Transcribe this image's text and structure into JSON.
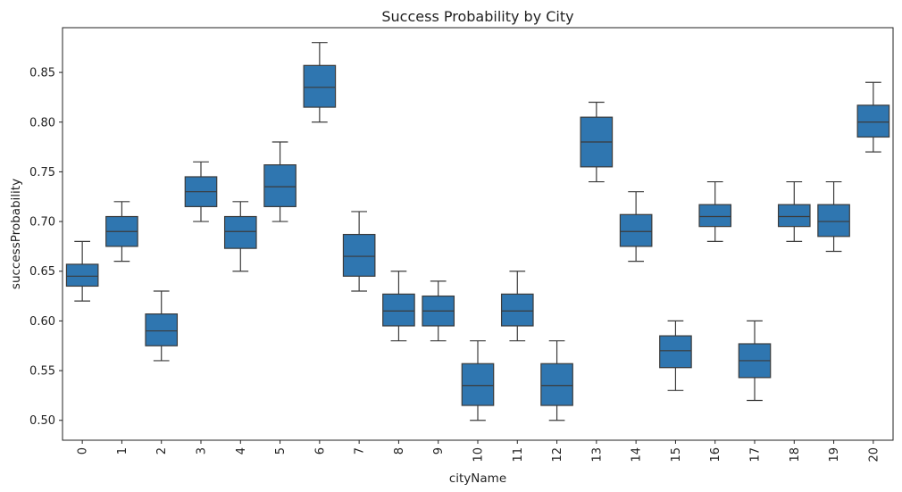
{
  "chart_data": {
    "type": "box",
    "title": "Success Probability by City",
    "xlabel": "cityName",
    "ylabel": "successProbability",
    "box_color": "#2f76b0",
    "line_color": "#3b3b3b",
    "ylim": [
      0.48,
      0.895
    ],
    "y_ticks": [
      0.5,
      0.55,
      0.6,
      0.65,
      0.7,
      0.75,
      0.8,
      0.85
    ],
    "y_tick_labels": [
      "0.50",
      "0.55",
      "0.60",
      "0.65",
      "0.70",
      "0.75",
      "0.80",
      "0.85"
    ],
    "categories": [
      "0",
      "1",
      "2",
      "3",
      "4",
      "5",
      "6",
      "7",
      "8",
      "9",
      "10",
      "11",
      "12",
      "13",
      "14",
      "15",
      "16",
      "17",
      "18",
      "19",
      "20"
    ],
    "boxes": [
      {
        "min": 0.62,
        "q1": 0.635,
        "median": 0.645,
        "q3": 0.657,
        "max": 0.68
      },
      {
        "min": 0.66,
        "q1": 0.675,
        "median": 0.69,
        "q3": 0.705,
        "max": 0.72
      },
      {
        "min": 0.56,
        "q1": 0.575,
        "median": 0.59,
        "q3": 0.607,
        "max": 0.63
      },
      {
        "min": 0.7,
        "q1": 0.715,
        "median": 0.73,
        "q3": 0.745,
        "max": 0.76
      },
      {
        "min": 0.65,
        "q1": 0.673,
        "median": 0.69,
        "q3": 0.705,
        "max": 0.72
      },
      {
        "min": 0.7,
        "q1": 0.715,
        "median": 0.735,
        "q3": 0.757,
        "max": 0.78
      },
      {
        "min": 0.8,
        "q1": 0.815,
        "median": 0.835,
        "q3": 0.857,
        "max": 0.88
      },
      {
        "min": 0.63,
        "q1": 0.645,
        "median": 0.665,
        "q3": 0.687,
        "max": 0.71
      },
      {
        "min": 0.58,
        "q1": 0.595,
        "median": 0.61,
        "q3": 0.627,
        "max": 0.65
      },
      {
        "min": 0.58,
        "q1": 0.595,
        "median": 0.61,
        "q3": 0.625,
        "max": 0.64
      },
      {
        "min": 0.5,
        "q1": 0.515,
        "median": 0.535,
        "q3": 0.557,
        "max": 0.58
      },
      {
        "min": 0.58,
        "q1": 0.595,
        "median": 0.61,
        "q3": 0.627,
        "max": 0.65
      },
      {
        "min": 0.5,
        "q1": 0.515,
        "median": 0.535,
        "q3": 0.557,
        "max": 0.58
      },
      {
        "min": 0.74,
        "q1": 0.755,
        "median": 0.78,
        "q3": 0.805,
        "max": 0.82
      },
      {
        "min": 0.66,
        "q1": 0.675,
        "median": 0.69,
        "q3": 0.707,
        "max": 0.73
      },
      {
        "min": 0.53,
        "q1": 0.553,
        "median": 0.57,
        "q3": 0.585,
        "max": 0.6
      },
      {
        "min": 0.68,
        "q1": 0.695,
        "median": 0.705,
        "q3": 0.717,
        "max": 0.74
      },
      {
        "min": 0.52,
        "q1": 0.543,
        "median": 0.56,
        "q3": 0.577,
        "max": 0.6
      },
      {
        "min": 0.68,
        "q1": 0.695,
        "median": 0.705,
        "q3": 0.717,
        "max": 0.74
      },
      {
        "min": 0.67,
        "q1": 0.685,
        "median": 0.7,
        "q3": 0.717,
        "max": 0.74
      },
      {
        "min": 0.77,
        "q1": 0.785,
        "median": 0.8,
        "q3": 0.817,
        "max": 0.84
      }
    ]
  }
}
